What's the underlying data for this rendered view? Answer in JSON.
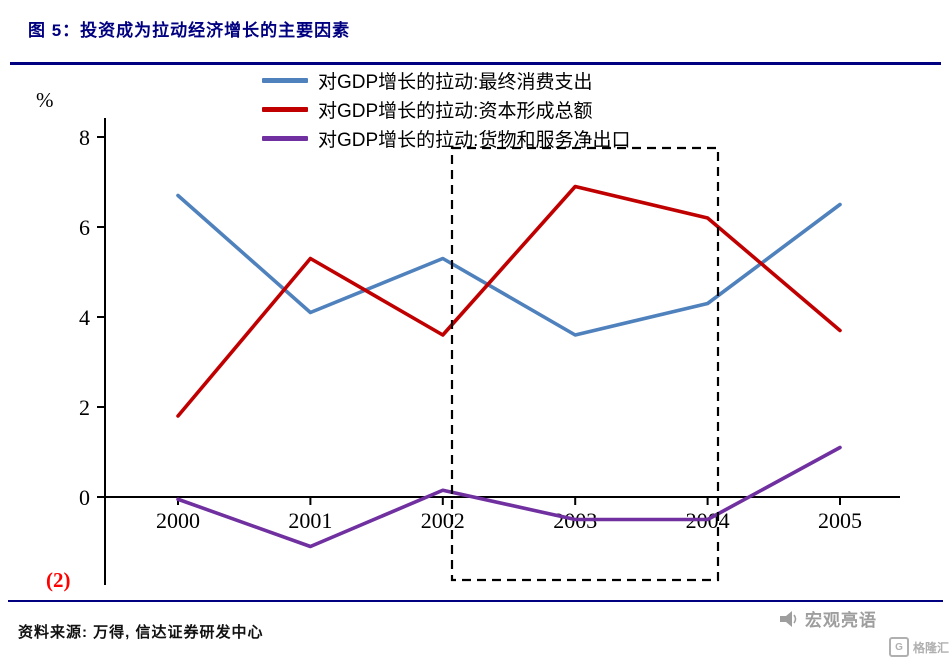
{
  "header": {
    "title": "图 5：投资成为拉动经济增长的主要因素"
  },
  "chart_data": {
    "type": "line",
    "x": [
      2000,
      2001,
      2002,
      2003,
      2004,
      2005
    ],
    "series": [
      {
        "name": "对GDP增长的拉动:最终消费支出",
        "color": "#4F81BD",
        "values": [
          6.7,
          4.1,
          5.3,
          3.6,
          4.3,
          6.5
        ]
      },
      {
        "name": "对GDP增长的拉动:资本形成总额",
        "color": "#C00000",
        "values": [
          1.8,
          5.3,
          3.6,
          6.9,
          6.2,
          3.7
        ]
      },
      {
        "name": "对GDP增长的拉动:货物和服务净出口",
        "color": "#7030A0",
        "values": [
          -0.05,
          -1.1,
          0.15,
          -0.5,
          -0.5,
          1.1
        ]
      }
    ],
    "ylabel": "%",
    "yticks": [
      0,
      2,
      4,
      6,
      8
    ],
    "ylim": [
      -2,
      8
    ],
    "grid": false,
    "legend_position": "top-center",
    "annotation": {
      "type": "dashed-box",
      "x_from": 2002,
      "x_to": 2004,
      "meaning": "highlighted period"
    }
  },
  "footnote": "(2)",
  "source": "资料来源: 万得, 信达证券研发中心",
  "watermark": {
    "brand": "宏观亮语",
    "logo": "格隆汇",
    "gray": "#9e9e9e"
  }
}
